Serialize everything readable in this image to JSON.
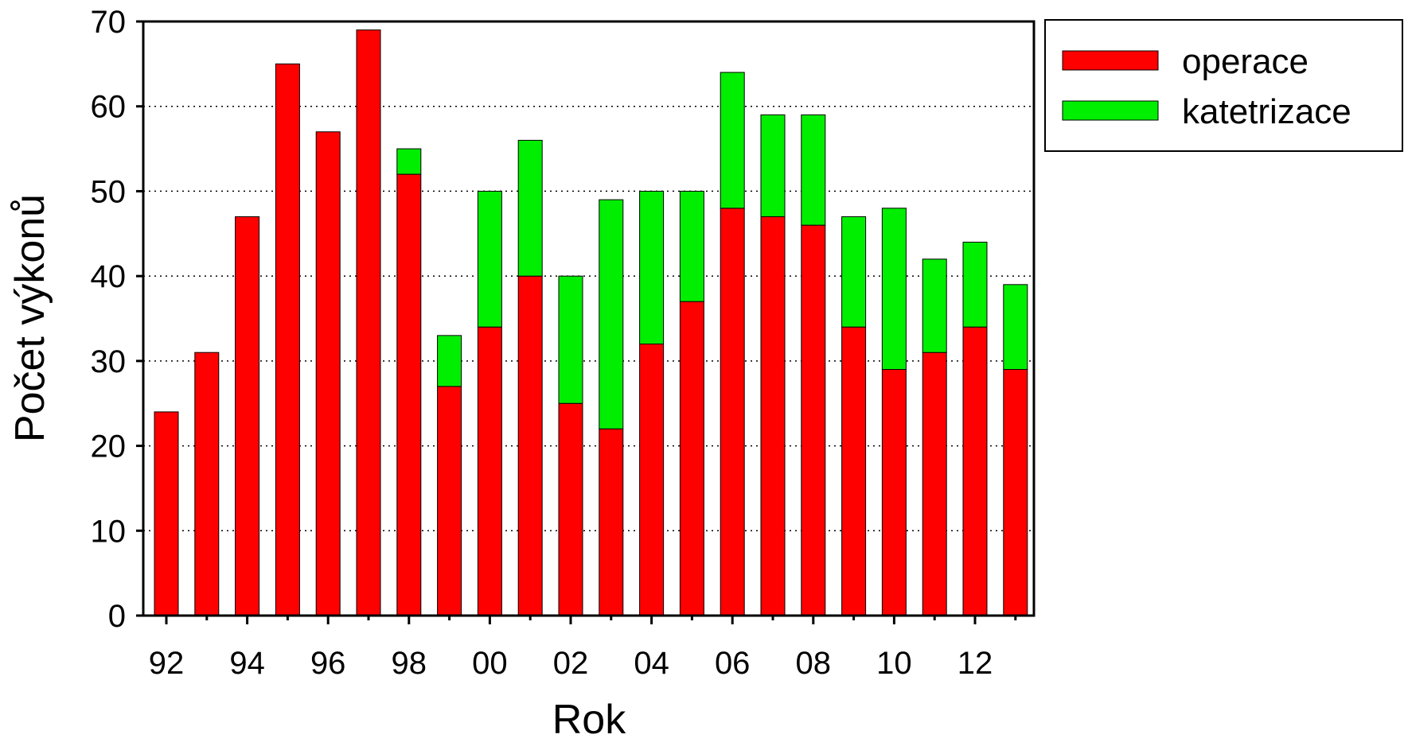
{
  "chart_data": {
    "type": "bar",
    "stacked": true,
    "title": "",
    "xlabel": "Rok",
    "ylabel": "Počet výkonů",
    "ylim": [
      0,
      70
    ],
    "yticks": [
      "0",
      "10",
      "20",
      "30",
      "40",
      "50",
      "60",
      "70"
    ],
    "grid": "horizontal dotted",
    "legend_position": "top-right, outside plot",
    "categories": [
      "92",
      "93",
      "94",
      "95",
      "96",
      "97",
      "98",
      "99",
      "00",
      "01",
      "02",
      "03",
      "04",
      "05",
      "06",
      "07",
      "08",
      "09",
      "10",
      "11",
      "12",
      "13"
    ],
    "xtick_labels": [
      "92",
      "94",
      "96",
      "98",
      "00",
      "02",
      "04",
      "06",
      "08",
      "10",
      "12"
    ],
    "series": [
      {
        "name": "operace",
        "color": "#ff0000",
        "values": [
          24,
          31,
          47,
          65,
          57,
          69,
          52,
          27,
          34,
          40,
          25,
          22,
          32,
          37,
          48,
          47,
          46,
          34,
          29,
          31,
          34,
          29
        ]
      },
      {
        "name": "katetrizace",
        "color": "#00ee00",
        "values": [
          0,
          0,
          0,
          0,
          0,
          0,
          3,
          6,
          16,
          16,
          15,
          27,
          18,
          13,
          16,
          12,
          13,
          13,
          19,
          11,
          10,
          10
        ]
      }
    ]
  }
}
